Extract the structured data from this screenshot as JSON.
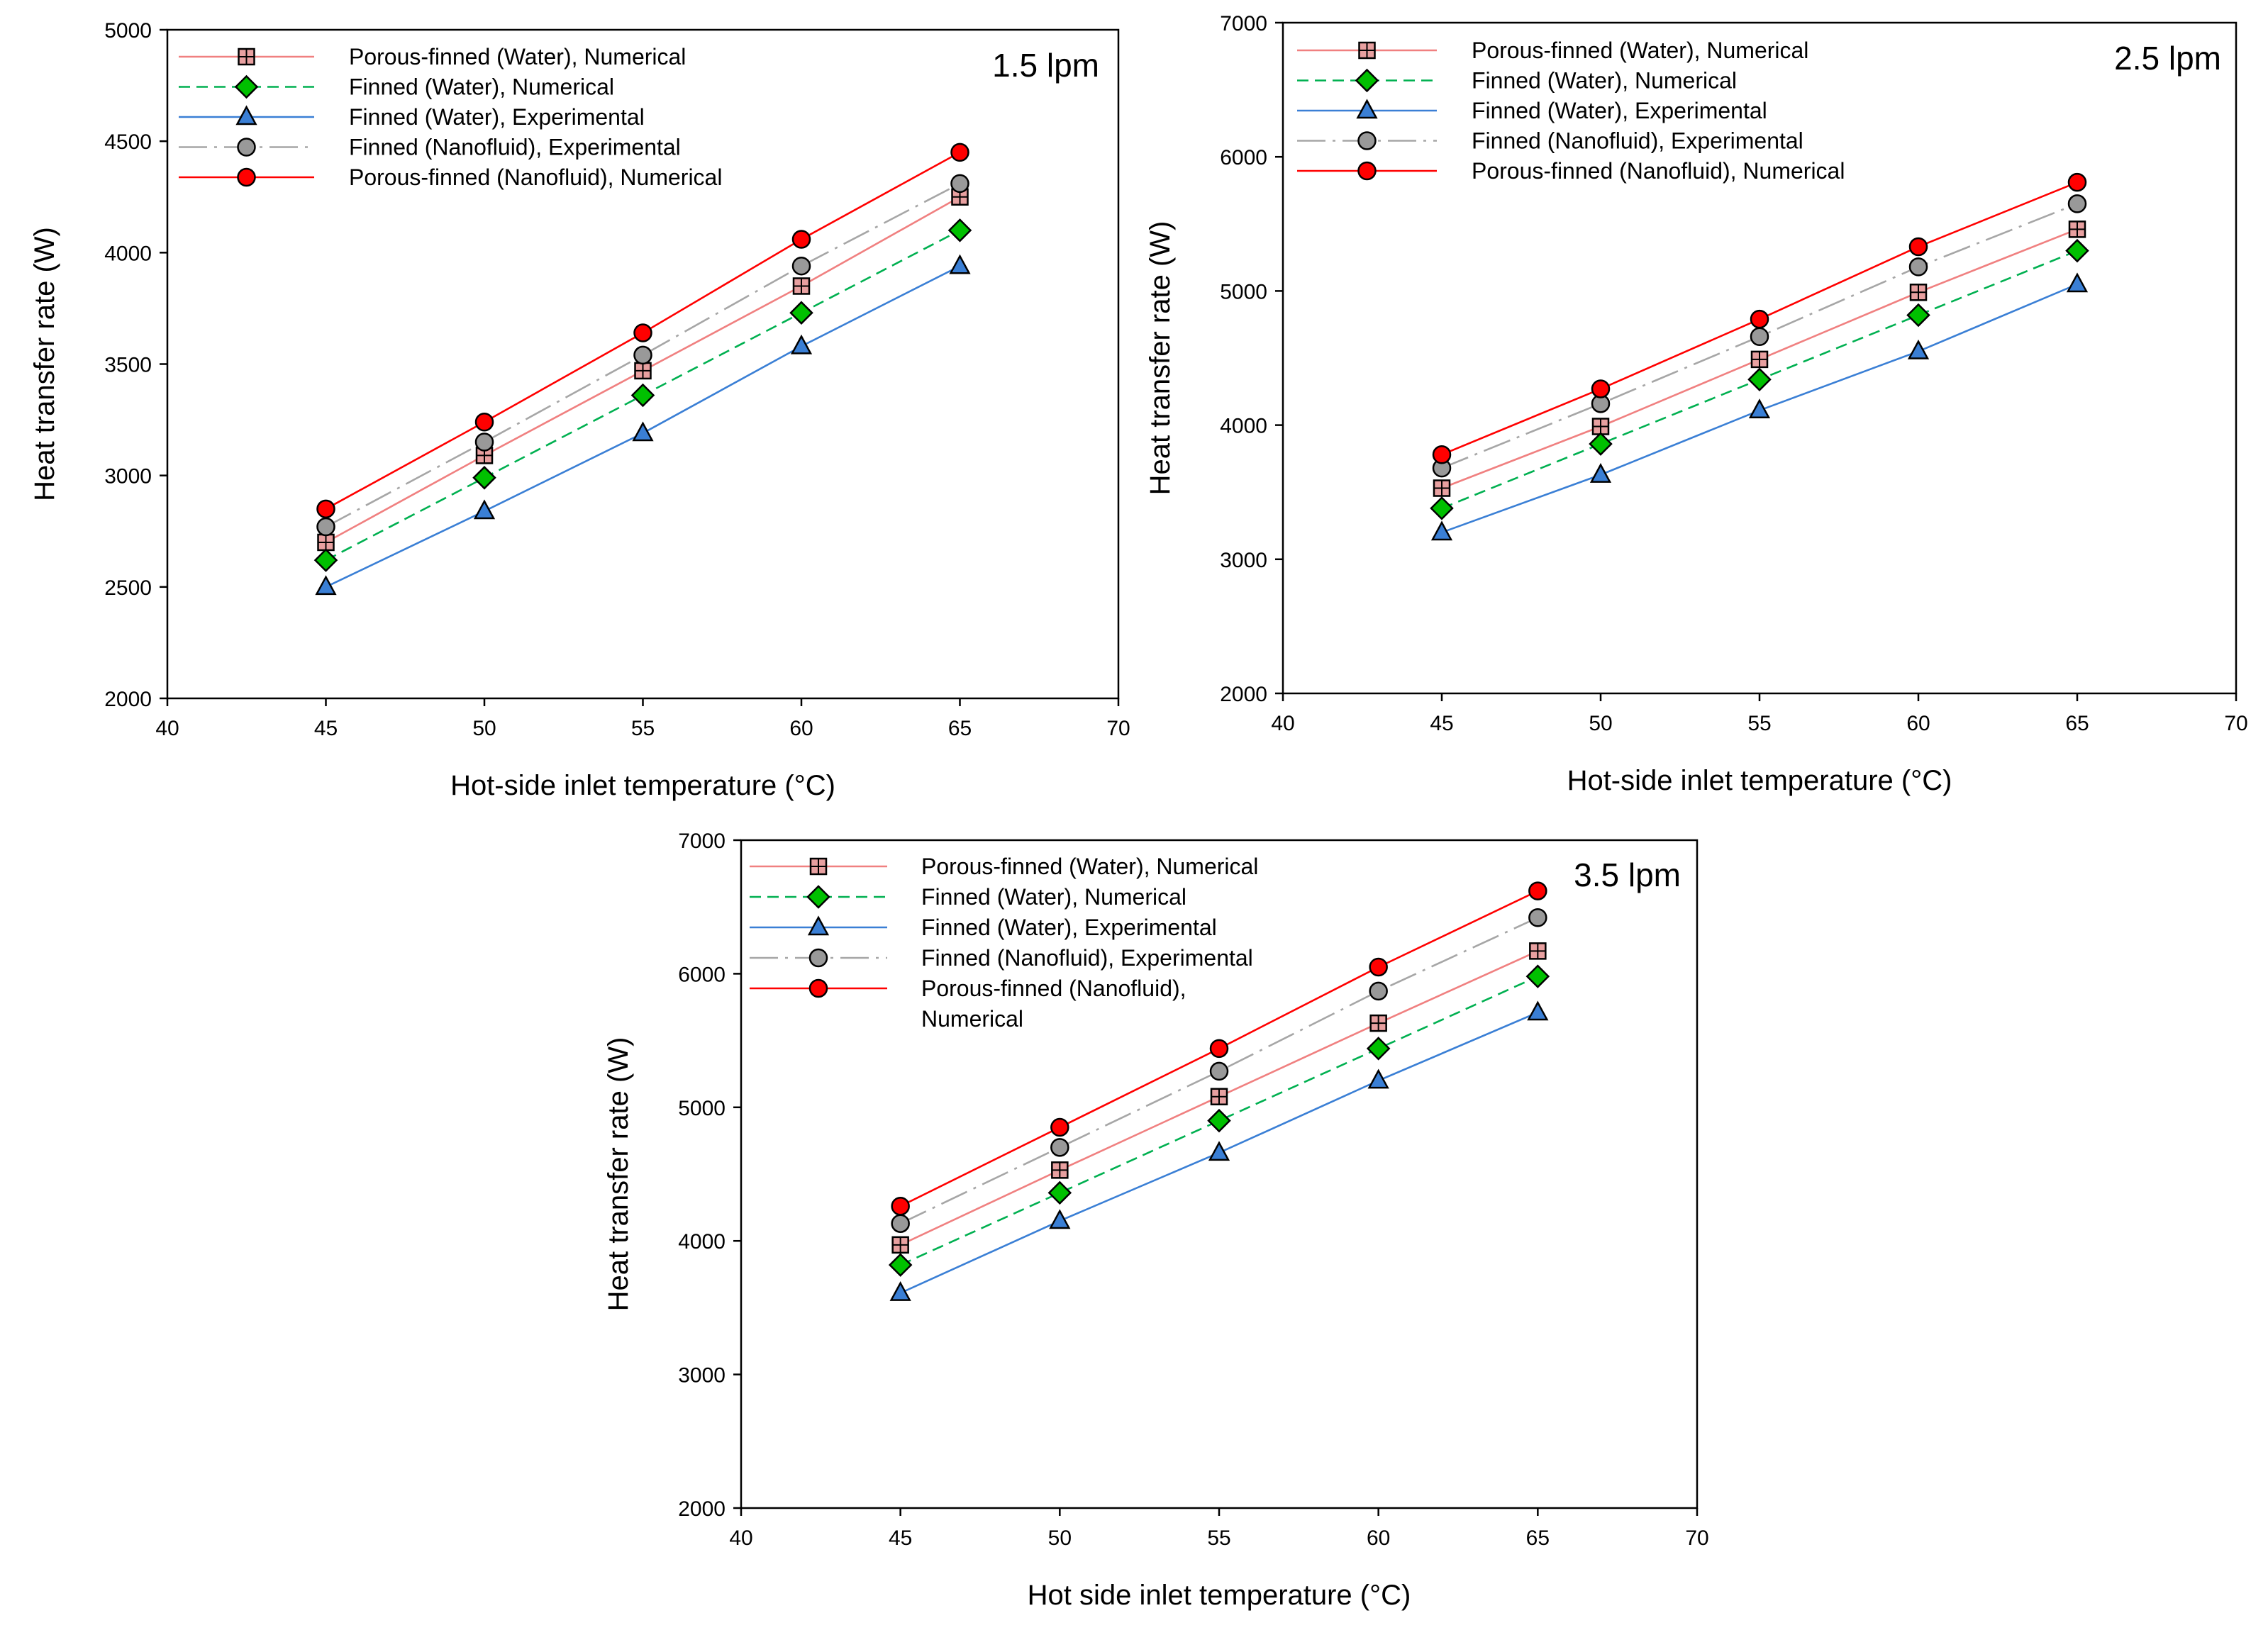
{
  "chart_data": [
    {
      "type": "line",
      "flow_label": "1.5 lpm",
      "xlabel": "Hot-side inlet temperature (°C)",
      "ylabel": "Heat transfer rate (W)",
      "xlim": [
        40,
        70
      ],
      "ylim": [
        2000,
        5000
      ],
      "xticks": [
        "40",
        "45",
        "50",
        "55",
        "60",
        "65",
        "70"
      ],
      "yticks": [
        "2000",
        "2500",
        "3000",
        "3500",
        "4000",
        "4500",
        "5000"
      ],
      "x": [
        45,
        50,
        55,
        60,
        65
      ],
      "legend_position": "top-left",
      "series": [
        {
          "name": "Porous-finned (Water), Numerical",
          "values": [
            2700,
            3090,
            3470,
            3850,
            4250
          ],
          "color": "#f08080",
          "marker": "square-cross",
          "marker_fill": "#e8a0a0",
          "dash": ""
        },
        {
          "name": "Finned (Water), Numerical",
          "values": [
            2620,
            2990,
            3360,
            3730,
            4100
          ],
          "color": "#00b050",
          "marker": "diamond",
          "marker_fill": "#00c000",
          "dash": "16,9"
        },
        {
          "name": "Finned (Water), Experimental",
          "values": [
            2500,
            2840,
            3190,
            3580,
            3940
          ],
          "color": "#3a7fd5",
          "marker": "triangle",
          "marker_fill": "#3a7fd5",
          "dash": ""
        },
        {
          "name": "Finned (Nanofluid), Experimental",
          "values": [
            2770,
            3150,
            3540,
            3940,
            4310
          ],
          "color": "#a6a6a6",
          "marker": "circle",
          "marker_fill": "#999999",
          "dash": "40,10,4,10"
        },
        {
          "name": "Porous-finned (Nanofluid), Numerical",
          "values": [
            2850,
            3240,
            3640,
            4060,
            4450
          ],
          "color": "#ff0000",
          "marker": "circle",
          "marker_fill": "#ff0000",
          "dash": ""
        }
      ]
    },
    {
      "type": "line",
      "flow_label": "2.5 lpm",
      "xlabel": "Hot-side inlet temperature (°C)",
      "ylabel": "Heat transfer rate (W)",
      "xlim": [
        40,
        70
      ],
      "ylim": [
        2000,
        7000
      ],
      "xticks": [
        "40",
        "45",
        "50",
        "55",
        "60",
        "65",
        "70"
      ],
      "yticks": [
        "2000",
        "3000",
        "4000",
        "5000",
        "6000",
        "7000"
      ],
      "x": [
        45,
        50,
        55,
        60,
        65
      ],
      "legend_position": "top-left",
      "series": [
        {
          "name": "Porous-finned (Water), Numerical",
          "values": [
            3530,
            3990,
            4490,
            4990,
            5460
          ],
          "color": "#f08080",
          "marker": "square-cross",
          "marker_fill": "#e8a0a0",
          "dash": ""
        },
        {
          "name": "Finned (Water), Numerical",
          "values": [
            3380,
            3860,
            4340,
            4820,
            5300
          ],
          "color": "#00b050",
          "marker": "diamond",
          "marker_fill": "#00c000",
          "dash": "16,9"
        },
        {
          "name": "Finned (Water), Experimental",
          "values": [
            3200,
            3630,
            4110,
            4550,
            5050
          ],
          "color": "#3a7fd5",
          "marker": "triangle",
          "marker_fill": "#3a7fd5",
          "dash": ""
        },
        {
          "name": "Finned (Nanofluid), Experimental",
          "values": [
            3680,
            4160,
            4660,
            5180,
            5650
          ],
          "color": "#a6a6a6",
          "marker": "circle",
          "marker_fill": "#999999",
          "dash": "40,10,4,10"
        },
        {
          "name": "Porous-finned (Nanofluid), Numerical",
          "values": [
            3780,
            4270,
            4790,
            5330,
            5810
          ],
          "color": "#ff0000",
          "marker": "circle",
          "marker_fill": "#ff0000",
          "dash": ""
        }
      ]
    },
    {
      "type": "line",
      "flow_label": "3.5 lpm",
      "xlabel": "Hot side inlet temperature (°C)",
      "ylabel": "Heat transfer rate (W)",
      "xlim": [
        40,
        70
      ],
      "ylim": [
        2000,
        7000
      ],
      "xticks": [
        "40",
        "45",
        "50",
        "55",
        "60",
        "65",
        "70"
      ],
      "yticks": [
        "2000",
        "3000",
        "4000",
        "5000",
        "6000",
        "7000"
      ],
      "x": [
        45,
        50,
        55,
        60,
        65
      ],
      "legend_position": "top-left",
      "series": [
        {
          "name": "Porous-finned (Water), Numerical",
          "values": [
            3970,
            4530,
            5080,
            5630,
            6170
          ],
          "color": "#f08080",
          "marker": "square-cross",
          "marker_fill": "#e8a0a0",
          "dash": ""
        },
        {
          "name": "Finned (Water), Numerical",
          "values": [
            3820,
            4360,
            4900,
            5440,
            5980
          ],
          "color": "#00b050",
          "marker": "diamond",
          "marker_fill": "#00c000",
          "dash": "16,9"
        },
        {
          "name": "Finned (Water), Experimental",
          "values": [
            3610,
            4150,
            4660,
            5200,
            5710
          ],
          "color": "#3a7fd5",
          "marker": "triangle",
          "marker_fill": "#3a7fd5",
          "dash": ""
        },
        {
          "name": "Finned (Nanofluid), Experimental",
          "values": [
            4130,
            4700,
            5270,
            5870,
            6420
          ],
          "color": "#a6a6a6",
          "marker": "circle",
          "marker_fill": "#999999",
          "dash": "40,10,4,10"
        },
        {
          "name": "Porous-finned (Nanofluid), Numerical",
          "values": [
            4260,
            4850,
            5440,
            6050,
            6620
          ],
          "color": "#ff0000",
          "marker": "circle",
          "marker_fill": "#ff0000",
          "dash": ""
        }
      ],
      "legend_wrap": {
        "series_index": 4,
        "lines": [
          "Porous-finned (Nanofluid),",
          "Numerical"
        ]
      }
    }
  ]
}
